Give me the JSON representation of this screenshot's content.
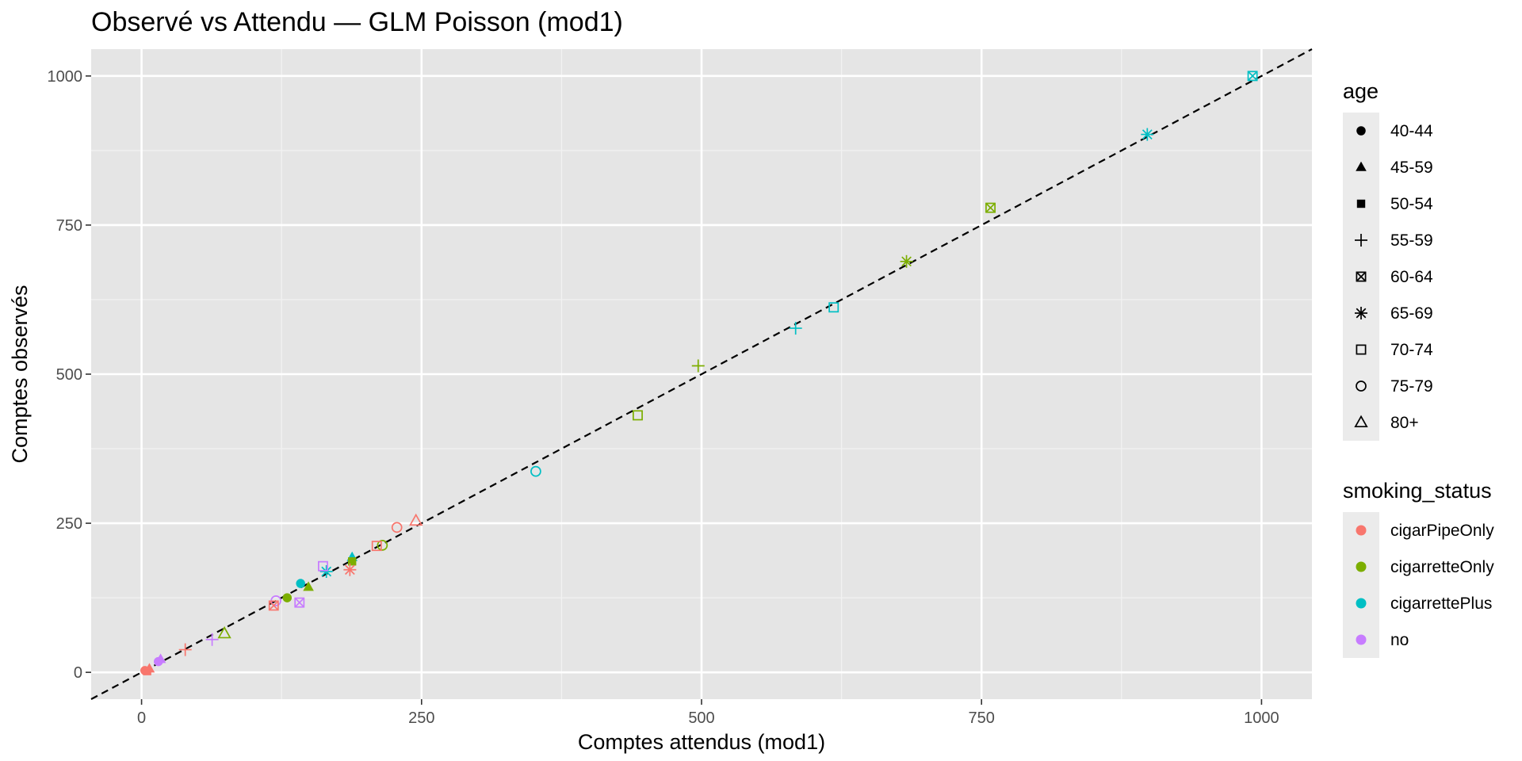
{
  "chart_data": {
    "type": "scatter",
    "title": "Observé vs Attendu — GLM Poisson (mod1)",
    "xlabel": "Comptes attendus (mod1)",
    "ylabel": "Comptes observés",
    "xlim": [
      -45,
      1045
    ],
    "ylim": [
      -45,
      1045
    ],
    "x_ticks": [
      0,
      250,
      500,
      750,
      1000
    ],
    "y_ticks": [
      0,
      250,
      500,
      750,
      1000
    ],
    "x_tick_labels": [
      "0",
      "250",
      "500",
      "750",
      "1000"
    ],
    "y_tick_labels": [
      "0",
      "250",
      "500",
      "750",
      "1000"
    ],
    "grid": true,
    "background_color": "#e5e5e5",
    "reference_line": {
      "slope": 1,
      "intercept": 0,
      "style": "dashed",
      "color": "#000000"
    },
    "legends": [
      {
        "title": "age",
        "type": "shape",
        "placement": "right",
        "entries": [
          {
            "label": "40-44",
            "shape": "circle-filled"
          },
          {
            "label": "45-59",
            "shape": "triangle-filled"
          },
          {
            "label": "50-54",
            "shape": "square-filled"
          },
          {
            "label": "55-59",
            "shape": "plus"
          },
          {
            "label": "60-64",
            "shape": "square-cross"
          },
          {
            "label": "65-69",
            "shape": "asterisk"
          },
          {
            "label": "70-74",
            "shape": "square-open"
          },
          {
            "label": "75-79",
            "shape": "circle-open"
          },
          {
            "label": "80+",
            "shape": "triangle-open"
          }
        ]
      },
      {
        "title": "smoking_status",
        "type": "color",
        "placement": "right",
        "entries": [
          {
            "label": "cigarPipeOnly",
            "color": "#F8766D"
          },
          {
            "label": "cigarretteOnly",
            "color": "#7CAE00"
          },
          {
            "label": "cigarrettePlus",
            "color": "#00BFC4"
          },
          {
            "label": "no",
            "color": "#C77CFF"
          }
        ]
      }
    ],
    "points": [
      {
        "x": 992,
        "y": 1000,
        "age": "60-64",
        "smoking_status": "cigarrettePlus"
      },
      {
        "x": 898,
        "y": 902,
        "age": "65-69",
        "smoking_status": "cigarrettePlus"
      },
      {
        "x": 758,
        "y": 779,
        "age": "60-64",
        "smoking_status": "cigarretteOnly"
      },
      {
        "x": 683,
        "y": 689,
        "age": "65-69",
        "smoking_status": "cigarretteOnly"
      },
      {
        "x": 618,
        "y": 612,
        "age": "70-74",
        "smoking_status": "cigarrettePlus"
      },
      {
        "x": 584,
        "y": 577,
        "age": "55-59",
        "smoking_status": "cigarrettePlus"
      },
      {
        "x": 497,
        "y": 514,
        "age": "55-59",
        "smoking_status": "cigarretteOnly"
      },
      {
        "x": 443,
        "y": 431,
        "age": "70-74",
        "smoking_status": "cigarretteOnly"
      },
      {
        "x": 352,
        "y": 337,
        "age": "75-79",
        "smoking_status": "cigarrettePlus"
      },
      {
        "x": 245,
        "y": 254,
        "age": "80+",
        "smoking_status": "cigarPipeOnly"
      },
      {
        "x": 228,
        "y": 243,
        "age": "75-79",
        "smoking_status": "cigarPipeOnly"
      },
      {
        "x": 215,
        "y": 213,
        "age": "75-79",
        "smoking_status": "cigarretteOnly"
      },
      {
        "x": 210,
        "y": 212,
        "age": "70-74",
        "smoking_status": "cigarPipeOnly"
      },
      {
        "x": 188,
        "y": 193,
        "age": "45-59",
        "smoking_status": "cigarrettePlus"
      },
      {
        "x": 188,
        "y": 186,
        "age": "50-54",
        "smoking_status": "cigarretteOnly"
      },
      {
        "x": 186,
        "y": 172,
        "age": "65-69",
        "smoking_status": "cigarPipeOnly"
      },
      {
        "x": 165,
        "y": 169,
        "age": "65-69",
        "smoking_status": "cigarrettePlus"
      },
      {
        "x": 162,
        "y": 178,
        "age": "70-74",
        "smoking_status": "no"
      },
      {
        "x": 149,
        "y": 143,
        "age": "45-59",
        "smoking_status": "cigarretteOnly"
      },
      {
        "x": 142,
        "y": 149,
        "age": "40-44",
        "smoking_status": "cigarrettePlus"
      },
      {
        "x": 141,
        "y": 117,
        "age": "60-64",
        "smoking_status": "no"
      },
      {
        "x": 130,
        "y": 125,
        "age": "40-44",
        "smoking_status": "cigarretteOnly"
      },
      {
        "x": 120,
        "y": 120,
        "age": "75-79",
        "smoking_status": "no"
      },
      {
        "x": 118,
        "y": 112,
        "age": "60-64",
        "smoking_status": "cigarPipeOnly"
      },
      {
        "x": 74,
        "y": 65,
        "age": "80+",
        "smoking_status": "cigarretteOnly"
      },
      {
        "x": 63,
        "y": 55,
        "age": "55-59",
        "smoking_status": "no"
      },
      {
        "x": 39,
        "y": 38,
        "age": "55-59",
        "smoking_status": "cigarPipeOnly"
      },
      {
        "x": 17,
        "y": 22,
        "age": "45-59",
        "smoking_status": "no"
      },
      {
        "x": 15,
        "y": 18,
        "age": "40-44",
        "smoking_status": "no"
      },
      {
        "x": 7,
        "y": 6,
        "age": "45-59",
        "smoking_status": "cigarPipeOnly"
      },
      {
        "x": 5,
        "y": 2,
        "age": "50-54",
        "smoking_status": "cigarPipeOnly"
      },
      {
        "x": 3,
        "y": 3,
        "age": "40-44",
        "smoking_status": "cigarPipeOnly"
      }
    ]
  }
}
